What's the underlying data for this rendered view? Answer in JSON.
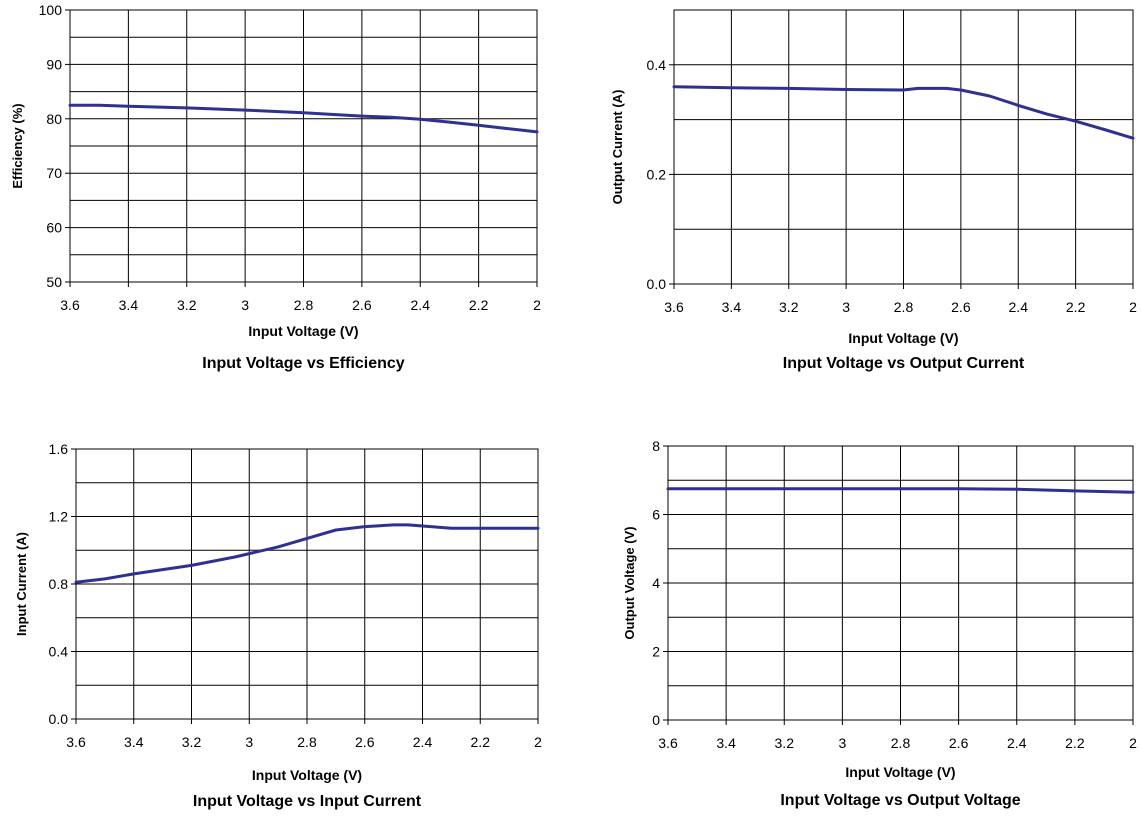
{
  "chart_data": [
    {
      "type": "line",
      "title": "Input Voltage vs Efficiency",
      "xlabel": "Input Voltage (V)",
      "ylabel": "Efficiency (%)",
      "x_ticks": [
        "3.6",
        "3.4",
        "3.2",
        "3",
        "2.8",
        "2.6",
        "2.4",
        "2.2",
        "2"
      ],
      "y_ticks": [
        "50",
        "60",
        "70",
        "80",
        "90",
        "100"
      ],
      "xlim": [
        3.6,
        2.0
      ],
      "ylim": [
        50,
        100
      ],
      "x_reversed": true,
      "grid": true,
      "line_color": "#2e3192",
      "x": [
        3.6,
        3.5,
        3.4,
        3.2,
        3.0,
        2.8,
        2.6,
        2.5,
        2.4,
        2.3,
        2.2,
        2.1,
        2.0
      ],
      "y": [
        82.5,
        82.5,
        82.3,
        82.0,
        81.6,
        81.1,
        80.5,
        80.3,
        79.9,
        79.4,
        78.8,
        78.2,
        77.6
      ]
    },
    {
      "type": "line",
      "title": "Input Voltage vs Output Current",
      "xlabel": "Input Voltage (V)",
      "ylabel": "Output Current (A)",
      "x_ticks": [
        "3.6",
        "3.4",
        "3.2",
        "3",
        "2.8",
        "2.6",
        "2.4",
        "2.2",
        "2"
      ],
      "y_ticks": [
        "0.0",
        "0.2",
        "0.4"
      ],
      "xlim": [
        3.6,
        2.0
      ],
      "ylim": [
        0.0,
        0.5
      ],
      "x_reversed": true,
      "grid": true,
      "line_color": "#2e3192",
      "x": [
        3.6,
        3.4,
        3.2,
        3.0,
        2.8,
        2.75,
        2.65,
        2.6,
        2.5,
        2.4,
        2.3,
        2.2,
        2.1,
        2.0
      ],
      "y": [
        0.36,
        0.358,
        0.357,
        0.355,
        0.354,
        0.357,
        0.357,
        0.354,
        0.343,
        0.326,
        0.31,
        0.297,
        0.282,
        0.266
      ]
    },
    {
      "type": "line",
      "title": "Input Voltage vs Input Current",
      "xlabel": "Input Voltage (V)",
      "ylabel": "Input Current (A)",
      "x_ticks": [
        "3.6",
        "3.4",
        "3.2",
        "3",
        "2.8",
        "2.6",
        "2.4",
        "2.2",
        "2"
      ],
      "y_ticks": [
        "0.0",
        "0.4",
        "0.8",
        "1.2",
        "1.6"
      ],
      "xlim": [
        3.6,
        2.0
      ],
      "ylim": [
        0.0,
        1.6
      ],
      "x_reversed": true,
      "grid": true,
      "line_color": "#2e3192",
      "x": [
        3.6,
        3.5,
        3.4,
        3.2,
        3.05,
        2.9,
        2.8,
        2.7,
        2.6,
        2.5,
        2.45,
        2.3,
        2.2,
        2.0
      ],
      "y": [
        0.81,
        0.83,
        0.86,
        0.91,
        0.96,
        1.02,
        1.07,
        1.12,
        1.14,
        1.15,
        1.15,
        1.13,
        1.13,
        1.13
      ]
    },
    {
      "type": "line",
      "title": "Input Voltage vs Output Voltage",
      "xlabel": "Input Voltage (V)",
      "ylabel": "Output Voltage (V)",
      "x_ticks": [
        "3.6",
        "3.4",
        "3.2",
        "3",
        "2.8",
        "2.6",
        "2.4",
        "2.2",
        "2"
      ],
      "y_ticks": [
        "0",
        "2",
        "4",
        "6",
        "8"
      ],
      "xlim": [
        3.6,
        2.0
      ],
      "ylim": [
        0,
        8
      ],
      "x_reversed": true,
      "grid": true,
      "line_color": "#2e3192",
      "x": [
        3.6,
        3.4,
        3.2,
        3.0,
        2.8,
        2.6,
        2.4,
        2.2,
        2.0
      ],
      "y": [
        6.75,
        6.75,
        6.75,
        6.75,
        6.75,
        6.75,
        6.74,
        6.69,
        6.65
      ]
    }
  ]
}
